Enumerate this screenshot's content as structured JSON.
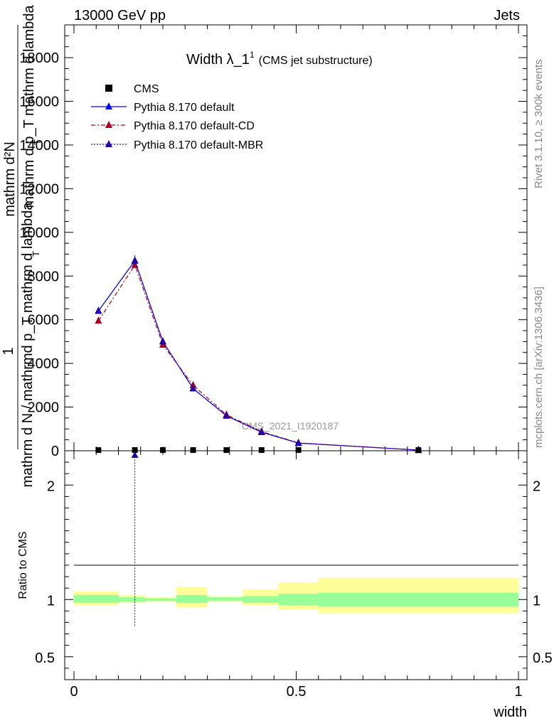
{
  "header": {
    "left": "13000 GeV pp",
    "right": "Jets"
  },
  "side": {
    "rivet": "Rivet 3.1.10, ≥ 300k events",
    "mcplots": "mcplots.cern.ch [arXiv:1306.3436]"
  },
  "chart_data": [
    {
      "type": "line",
      "title": "Width λ_1",
      "title_sup": "1",
      "subtitle": "(CMS jet substructure)",
      "watermark": "CMS_2021_I1920187",
      "ylabel_top": "1",
      "ylabel_fraction_num": "mathrm d²N",
      "ylabel_fraction_den": "mathrm d p_T mathrm d lambda",
      "ylabel_inner": "mathrm d N / mathrmd p_T mathrm d lambda",
      "ylabel_inner_sub": "T",
      "ylabel_den_sub": "T",
      "xlim": [
        0,
        1
      ],
      "ylim": [
        0,
        19500
      ],
      "yticks": [
        0,
        2000,
        4000,
        6000,
        8000,
        10000,
        12000,
        14000,
        16000,
        18000
      ],
      "ytick_labels": [
        "0",
        "2000",
        "4000",
        "6000",
        "8000",
        "10000",
        "12000",
        "14000",
        "16000",
        "18000"
      ],
      "legend": [
        {
          "name": "CMS",
          "color": "#000000",
          "style": "marker"
        },
        {
          "name": "Pythia 8.170 default",
          "color": "#0000ff",
          "style": "solid"
        },
        {
          "name": "Pythia 8.170 default-CD",
          "color": "#aa0022",
          "style": "dashdot"
        },
        {
          "name": "Pythia 8.170 default-MBR",
          "color": "#2200aa",
          "style": "dotted"
        }
      ],
      "cms_x": [
        0.055,
        0.137,
        0.2,
        0.268,
        0.343,
        0.422,
        0.505,
        0.775
      ],
      "cms_y": [
        30,
        30,
        30,
        30,
        30,
        30,
        30,
        30
      ],
      "series": [
        {
          "name": "Pythia 8.170 default",
          "x": [
            0.055,
            0.137,
            0.2,
            0.268,
            0.343,
            0.422,
            0.505,
            0.775
          ],
          "y": [
            6400,
            8700,
            5000,
            2850,
            1600,
            850,
            350,
            30
          ]
        },
        {
          "name": "Pythia 8.170 default-CD",
          "x": [
            0.055,
            0.137,
            0.2,
            0.268,
            0.343,
            0.422,
            0.505,
            0.775
          ],
          "y": [
            5950,
            8500,
            4850,
            3000,
            1650,
            880,
            360,
            30
          ]
        },
        {
          "name": "Pythia 8.170 default-MBR",
          "x": [
            0.055,
            0.137,
            0.2,
            0.268,
            0.343,
            0.422,
            0.505,
            0.775
          ],
          "y": [
            6400,
            8700,
            5000,
            2850,
            1600,
            850,
            350,
            30
          ]
        }
      ]
    },
    {
      "type": "line",
      "ylabel": "Ratio to CMS",
      "xlabel": "width",
      "xlim": [
        0,
        1
      ],
      "ylim": [
        0.3,
        2.3
      ],
      "xticks": [
        0,
        0.5,
        1
      ],
      "xtick_labels": [
        "0",
        "0.5",
        "1"
      ],
      "yticks": [
        0.5,
        1,
        2
      ],
      "ytick_labels": [
        "0.5",
        "1",
        "2"
      ],
      "bands": [
        {
          "x0": 0.0,
          "x1": 0.1,
          "inner": [
            0.97,
            1.04
          ],
          "outer": [
            0.95,
            1.07
          ]
        },
        {
          "x0": 0.1,
          "x1": 0.16,
          "inner": [
            0.98,
            1.02
          ],
          "outer": [
            0.97,
            1.04
          ]
        },
        {
          "x0": 0.16,
          "x1": 0.23,
          "inner": [
            0.99,
            1.01
          ],
          "outer": [
            0.98,
            1.02
          ]
        },
        {
          "x0": 0.23,
          "x1": 0.3,
          "inner": [
            0.97,
            1.04
          ],
          "outer": [
            0.93,
            1.11
          ]
        },
        {
          "x0": 0.3,
          "x1": 0.38,
          "inner": [
            0.99,
            1.02
          ],
          "outer": [
            0.98,
            1.03
          ]
        },
        {
          "x0": 0.38,
          "x1": 0.46,
          "inner": [
            0.97,
            1.03
          ],
          "outer": [
            0.95,
            1.09
          ]
        },
        {
          "x0": 0.46,
          "x1": 0.55,
          "inner": [
            0.95,
            1.05
          ],
          "outer": [
            0.91,
            1.15
          ]
        },
        {
          "x0": 0.55,
          "x1": 1.0,
          "inner": [
            0.94,
            1.06
          ],
          "outer": [
            0.88,
            1.19
          ]
        }
      ],
      "mbr_spike_x": 0.137,
      "mbr_spike_y": [
        0.77,
        2.3
      ]
    }
  ]
}
